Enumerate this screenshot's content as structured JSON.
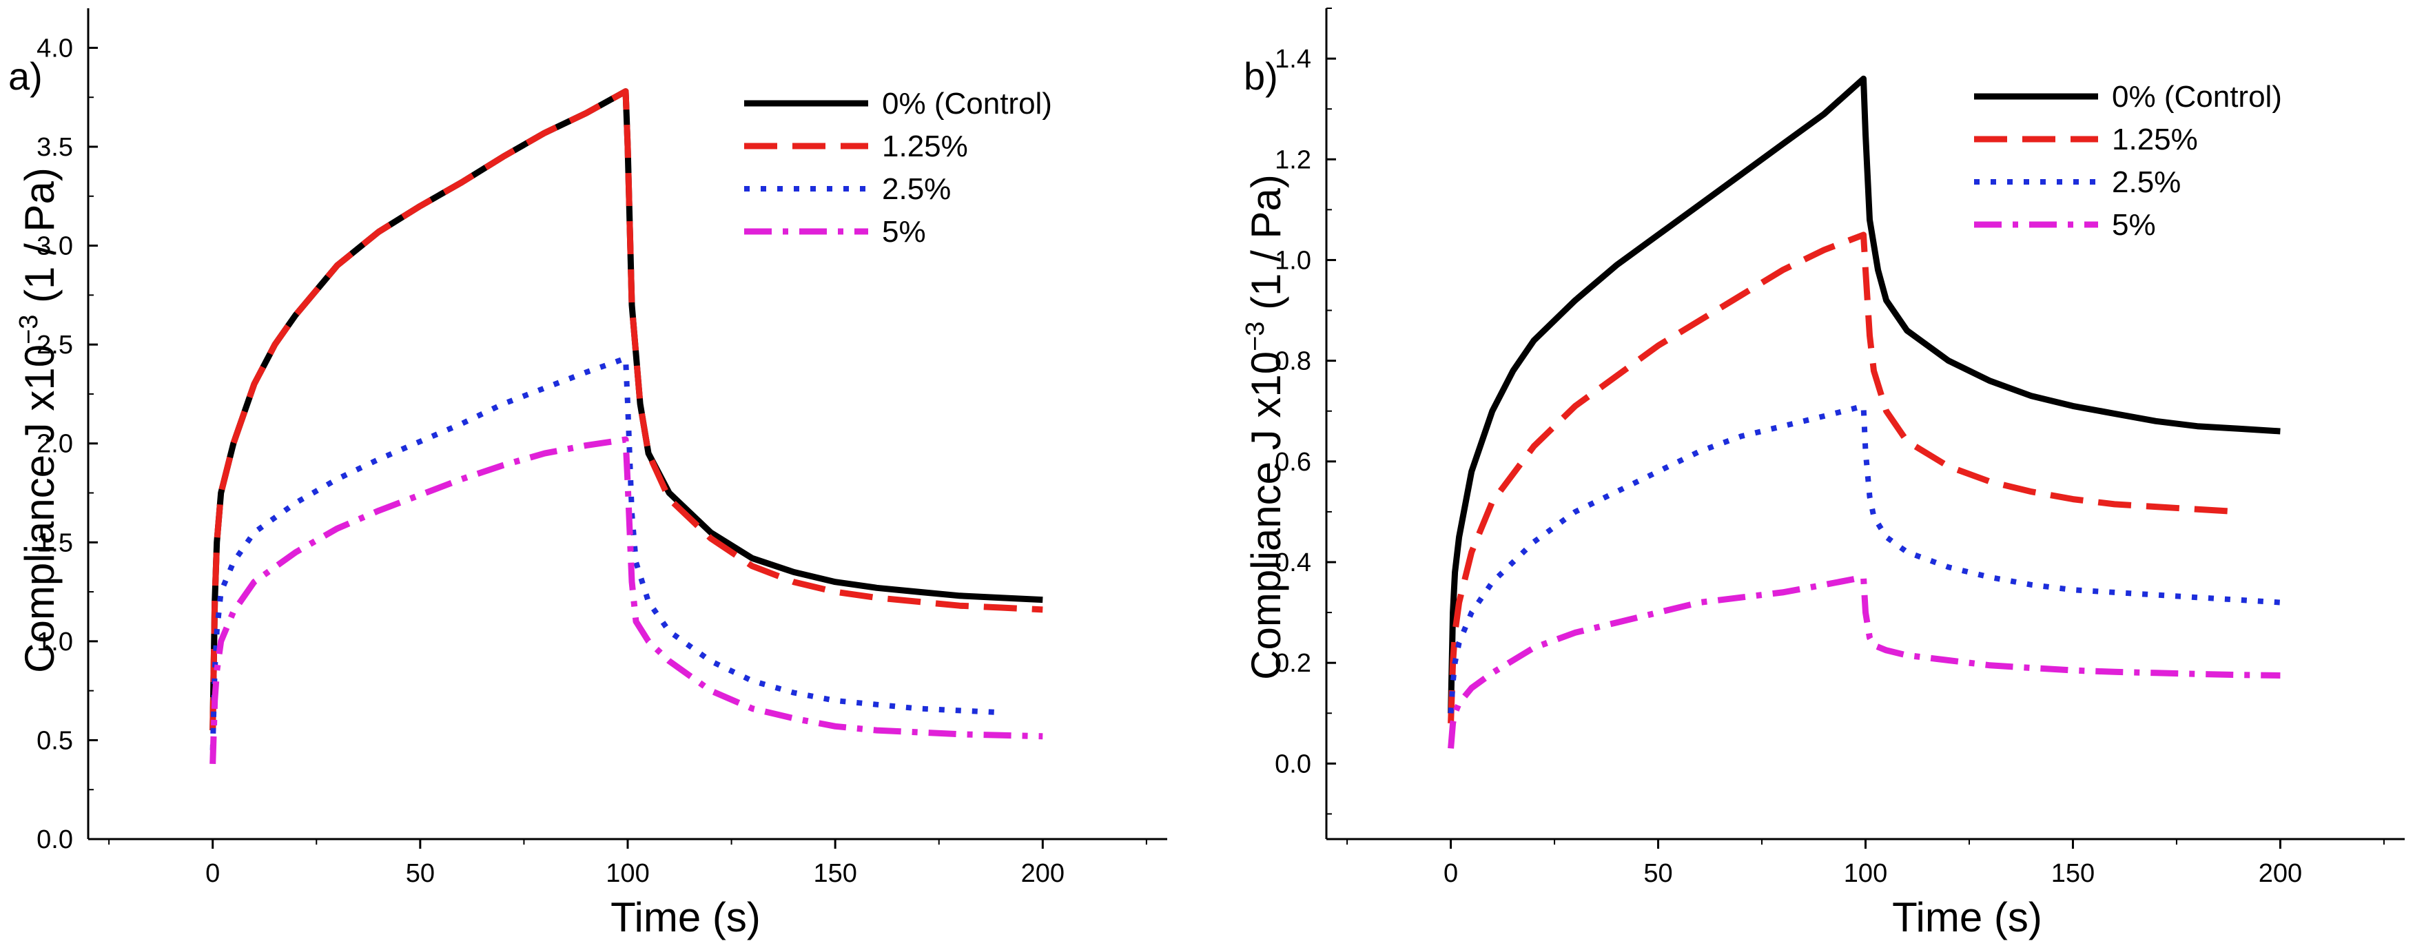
{
  "chart_data": [
    {
      "panel_label": "a)",
      "type": "line",
      "xlabel": "Time (s)",
      "ylabel_main": "Compliance J x10",
      "ylabel_exp": "−3",
      "ylabel_unit": " (1 / Pa)",
      "xlim": [
        -30,
        230
      ],
      "ylim": [
        0.0,
        4.2
      ],
      "xticks": [
        0,
        50,
        100,
        150,
        200
      ],
      "xtick_labels": [
        "0",
        "50",
        "100",
        "150",
        "200"
      ],
      "yticks": [
        0.0,
        0.5,
        1.0,
        1.5,
        2.0,
        2.5,
        3.0,
        3.5,
        4.0
      ],
      "ytick_labels": [
        "0.0",
        "0.5",
        "1.0",
        "1.5",
        "2.0",
        "2.5",
        "3.0",
        "3.5",
        "4.0"
      ],
      "legend_position": "top-right",
      "series": [
        {
          "name": "0% (Control)",
          "color": "#000000",
          "dash": "solid",
          "x": [
            0,
            0.5,
            1,
            2,
            5,
            10,
            15,
            20,
            30,
            40,
            50,
            60,
            70,
            80,
            90,
            99.5,
            100,
            101,
            103,
            105,
            110,
            120,
            130,
            140,
            150,
            160,
            170,
            180,
            190,
            200
          ],
          "y": [
            0.55,
            1.2,
            1.5,
            1.75,
            2.0,
            2.3,
            2.5,
            2.65,
            2.9,
            3.07,
            3.2,
            3.32,
            3.45,
            3.57,
            3.67,
            3.78,
            3.5,
            2.7,
            2.2,
            1.95,
            1.75,
            1.55,
            1.42,
            1.35,
            1.3,
            1.27,
            1.25,
            1.23,
            1.22,
            1.21
          ]
        },
        {
          "name": "1.25%",
          "color": "#e8211c",
          "dash": "long-dash",
          "x": [
            0,
            0.5,
            1,
            2,
            5,
            10,
            15,
            20,
            30,
            40,
            50,
            60,
            70,
            80,
            90,
            99.5,
            100,
            101,
            103,
            105,
            110,
            120,
            130,
            140,
            150,
            160,
            170,
            180,
            190,
            200
          ],
          "y": [
            0.55,
            1.2,
            1.5,
            1.75,
            2.0,
            2.3,
            2.5,
            2.65,
            2.9,
            3.07,
            3.2,
            3.32,
            3.45,
            3.57,
            3.67,
            3.78,
            3.5,
            2.7,
            2.2,
            1.95,
            1.72,
            1.52,
            1.38,
            1.3,
            1.25,
            1.22,
            1.2,
            1.18,
            1.17,
            1.16
          ]
        },
        {
          "name": "2.5%",
          "color": "#1c2ddb",
          "dash": "dotted",
          "x": [
            0,
            0.5,
            1,
            2,
            5,
            10,
            20,
            30,
            40,
            50,
            60,
            70,
            80,
            90,
            99.5,
            100,
            101,
            102,
            105,
            110,
            120,
            130,
            140,
            150,
            160,
            170,
            180,
            190
          ],
          "y": [
            0.45,
            0.85,
            1.05,
            1.25,
            1.4,
            1.55,
            1.7,
            1.82,
            1.92,
            2.01,
            2.1,
            2.2,
            2.28,
            2.36,
            2.43,
            2.2,
            1.65,
            1.4,
            1.2,
            1.05,
            0.9,
            0.8,
            0.74,
            0.7,
            0.68,
            0.66,
            0.65,
            0.64
          ]
        },
        {
          "name": "5%",
          "color": "#e020d8",
          "dash": "dash-dot",
          "x": [
            0,
            0.5,
            1,
            2,
            5,
            10,
            20,
            30,
            40,
            50,
            60,
            70,
            80,
            90,
            99.5,
            100,
            101,
            102,
            105,
            110,
            120,
            130,
            140,
            150,
            160,
            170,
            180,
            190,
            200
          ],
          "y": [
            0.38,
            0.7,
            0.85,
            1.0,
            1.15,
            1.3,
            1.45,
            1.57,
            1.66,
            1.74,
            1.82,
            1.89,
            1.95,
            1.99,
            2.02,
            1.8,
            1.3,
            1.1,
            1.0,
            0.9,
            0.75,
            0.66,
            0.61,
            0.57,
            0.55,
            0.54,
            0.53,
            0.525,
            0.52
          ]
        }
      ]
    },
    {
      "panel_label": "b)",
      "type": "line",
      "xlabel": "Time (s)",
      "ylabel_main": "Compliance J x10",
      "ylabel_exp": "−3",
      "ylabel_unit": " (1 / Pa)",
      "xlim": [
        -30,
        230
      ],
      "ylim": [
        -0.15,
        1.5
      ],
      "xticks": [
        0,
        50,
        100,
        150,
        200
      ],
      "xtick_labels": [
        "0",
        "50",
        "100",
        "150",
        "200"
      ],
      "yticks": [
        0.0,
        0.2,
        0.4,
        0.6,
        0.8,
        1.0,
        1.2,
        1.4
      ],
      "ytick_labels": [
        "0.0",
        "0.2",
        "0.4",
        "0.6",
        "0.8",
        "1.0",
        "1.2",
        "1.4"
      ],
      "legend_position": "top-right",
      "series": [
        {
          "name": "0% (Control)",
          "color": "#000000",
          "dash": "solid",
          "x": [
            0,
            0.5,
            1,
            2,
            5,
            10,
            15,
            20,
            30,
            40,
            50,
            60,
            70,
            80,
            90,
            99.5,
            100,
            101,
            103,
            105,
            110,
            120,
            130,
            140,
            150,
            160,
            170,
            180,
            190,
            200
          ],
          "y": [
            0.1,
            0.3,
            0.38,
            0.45,
            0.58,
            0.7,
            0.78,
            0.84,
            0.92,
            0.99,
            1.05,
            1.11,
            1.17,
            1.23,
            1.29,
            1.36,
            1.25,
            1.08,
            0.98,
            0.92,
            0.86,
            0.8,
            0.76,
            0.73,
            0.71,
            0.695,
            0.68,
            0.67,
            0.665,
            0.66
          ]
        },
        {
          "name": "1.25%",
          "color": "#e8211c",
          "dash": "long-dash",
          "x": [
            0,
            0.5,
            1,
            2,
            5,
            10,
            20,
            30,
            40,
            50,
            60,
            70,
            80,
            90,
            99.5,
            100,
            101,
            102,
            105,
            110,
            120,
            130,
            140,
            150,
            160,
            170,
            180,
            190
          ],
          "y": [
            0.08,
            0.2,
            0.26,
            0.32,
            0.42,
            0.52,
            0.63,
            0.71,
            0.77,
            0.83,
            0.88,
            0.93,
            0.98,
            1.02,
            1.05,
            0.98,
            0.85,
            0.78,
            0.7,
            0.64,
            0.59,
            0.56,
            0.54,
            0.525,
            0.515,
            0.51,
            0.505,
            0.5
          ]
        },
        {
          "name": "2.5%",
          "color": "#1c2ddb",
          "dash": "dotted",
          "x": [
            0,
            0.5,
            1,
            2,
            5,
            10,
            20,
            30,
            40,
            50,
            60,
            70,
            80,
            90,
            99.5,
            100,
            101,
            102,
            105,
            110,
            120,
            130,
            140,
            150,
            160,
            170,
            180,
            190,
            200
          ],
          "y": [
            0.1,
            0.16,
            0.2,
            0.24,
            0.3,
            0.36,
            0.44,
            0.5,
            0.54,
            0.58,
            0.62,
            0.65,
            0.67,
            0.69,
            0.71,
            0.62,
            0.53,
            0.49,
            0.45,
            0.42,
            0.39,
            0.37,
            0.355,
            0.345,
            0.34,
            0.335,
            0.33,
            0.325,
            0.32
          ]
        },
        {
          "name": "5%",
          "color": "#e020d8",
          "dash": "dash-dot",
          "x": [
            0,
            0.5,
            1,
            2,
            5,
            10,
            20,
            30,
            40,
            50,
            60,
            70,
            80,
            90,
            99.5,
            100,
            101,
            102,
            105,
            110,
            120,
            130,
            140,
            150,
            160,
            170,
            180,
            190,
            200
          ],
          "y": [
            0.03,
            0.08,
            0.1,
            0.12,
            0.15,
            0.18,
            0.23,
            0.26,
            0.28,
            0.3,
            0.32,
            0.33,
            0.34,
            0.355,
            0.37,
            0.3,
            0.25,
            0.235,
            0.225,
            0.215,
            0.205,
            0.195,
            0.19,
            0.185,
            0.182,
            0.18,
            0.178,
            0.176,
            0.175
          ]
        }
      ]
    }
  ]
}
